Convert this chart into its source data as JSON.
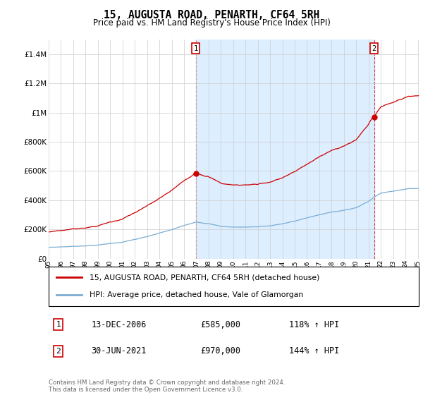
{
  "title": "15, AUGUSTA ROAD, PENARTH, CF64 5RH",
  "subtitle": "Price paid vs. HM Land Registry's House Price Index (HPI)",
  "legend_line1": "15, AUGUSTA ROAD, PENARTH, CF64 5RH (detached house)",
  "legend_line2": "HPI: Average price, detached house, Vale of Glamorgan",
  "annotation1_date": "13-DEC-2006",
  "annotation1_price": "£585,000",
  "annotation1_hpi": "118% ↑ HPI",
  "annotation2_date": "30-JUN-2021",
  "annotation2_price": "£970,000",
  "annotation2_hpi": "144% ↑ HPI",
  "footer": "Contains HM Land Registry data © Crown copyright and database right 2024.\nThis data is licensed under the Open Government Licence v3.0.",
  "sale1_price": 585000,
  "sale2_price": 970000,
  "hpi_color": "#7aadd4",
  "price_color": "#cc0000",
  "shade_color": "#ddeeff",
  "annotation_box_color": "#cc0000",
  "ylim_max": 1500000,
  "yticks": [
    0,
    200000,
    400000,
    600000,
    800000,
    1000000,
    1200000,
    1400000
  ],
  "background_color": "#ffffff",
  "grid_color": "#cccccc"
}
